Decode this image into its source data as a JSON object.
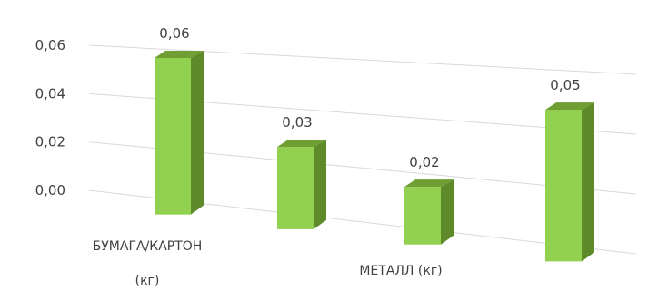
{
  "chart_data": {
    "type": "bar",
    "style": "3d-column",
    "categories": [
      "БУМАГА/КАРТОН (кг)",
      "",
      "МЕТАЛЛ (кг)",
      ""
    ],
    "category_label_lines": [
      [
        "БУМАГА/КАРТОН",
        "(кг)"
      ],
      [],
      [
        "МЕТАЛЛ (кг)"
      ],
      []
    ],
    "values": [
      0.06,
      0.03,
      0.02,
      0.05
    ],
    "data_labels": [
      "0,06",
      "0,03",
      "0,02",
      "0,05"
    ],
    "y_ticks": [
      "0,00",
      "0,02",
      "0,04",
      "0,06"
    ],
    "ylim": [
      0,
      0.06
    ],
    "grid": true,
    "legend": "none",
    "colors": {
      "bar_front": "#92d050",
      "bar_side": "#5e8a2a",
      "bar_top": "#6f9e33",
      "grid": "#d9d9d9",
      "text": "#404040"
    }
  }
}
